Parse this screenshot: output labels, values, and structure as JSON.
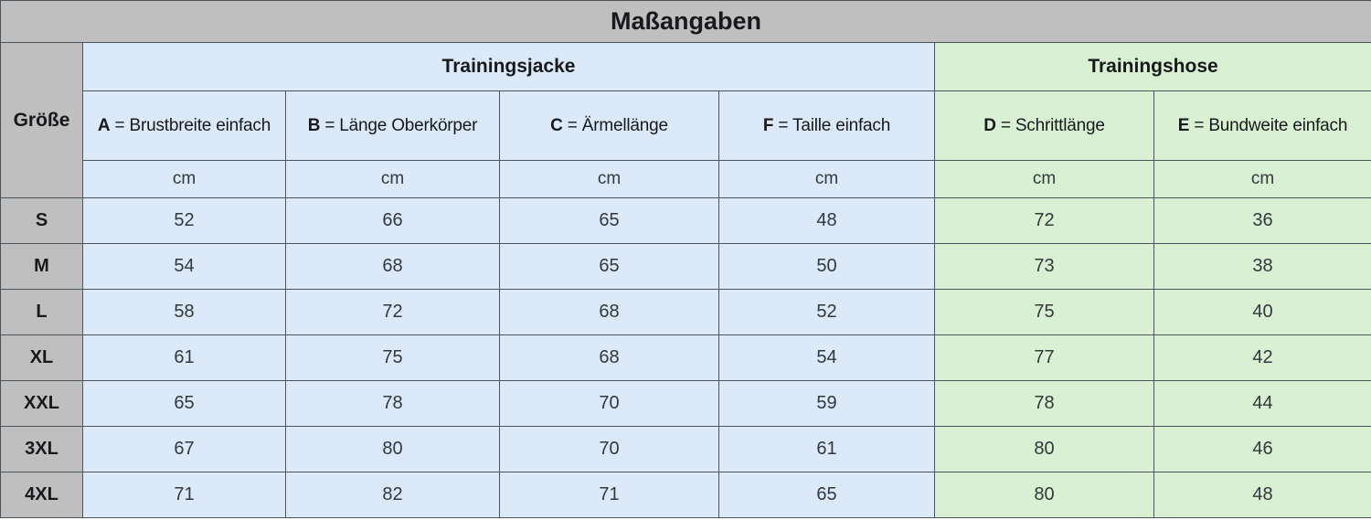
{
  "chart_data": {
    "type": "table",
    "title": "Maßangaben",
    "size_column_header": "Größe",
    "groups": [
      {
        "label": "Trainingsjacke",
        "colspan": 4,
        "color_key": "jacke"
      },
      {
        "label": "Trainingshose",
        "colspan": 2,
        "color_key": "hose"
      }
    ],
    "columns": [
      {
        "letter": "A",
        "name": "Brustbreite einfach",
        "unit": "cm",
        "group": "jacke"
      },
      {
        "letter": "B",
        "name": "Länge Oberkörper",
        "unit": "cm",
        "group": "jacke"
      },
      {
        "letter": "C",
        "name": "Ärmellänge",
        "unit": "cm",
        "group": "jacke"
      },
      {
        "letter": "F",
        "name": "Taille einfach",
        "unit": "cm",
        "group": "jacke"
      },
      {
        "letter": "D",
        "name": "Schrittlänge",
        "unit": "cm",
        "group": "hose"
      },
      {
        "letter": "E",
        "name": "Bundweite einfach",
        "unit": "cm",
        "group": "hose"
      }
    ],
    "rows": [
      {
        "size": "S",
        "values": [
          52,
          66,
          65,
          48,
          72,
          36
        ]
      },
      {
        "size": "M",
        "values": [
          54,
          68,
          65,
          50,
          73,
          38
        ]
      },
      {
        "size": "L",
        "values": [
          58,
          72,
          68,
          52,
          75,
          40
        ]
      },
      {
        "size": "XL",
        "values": [
          61,
          75,
          68,
          54,
          77,
          42
        ]
      },
      {
        "size": "XXL",
        "values": [
          65,
          78,
          70,
          59,
          78,
          44
        ]
      },
      {
        "size": "3XL",
        "values": [
          67,
          80,
          70,
          61,
          80,
          46
        ]
      },
      {
        "size": "4XL",
        "values": [
          71,
          82,
          71,
          65,
          80,
          48
        ]
      }
    ]
  },
  "colors": {
    "header_gray": "#bfbfbf",
    "jacke_blue": "#dbe9f8",
    "hose_green": "#d9f0d2",
    "border": "#4d545c",
    "text_strong": "#17191c",
    "text_data": "#33383d"
  }
}
